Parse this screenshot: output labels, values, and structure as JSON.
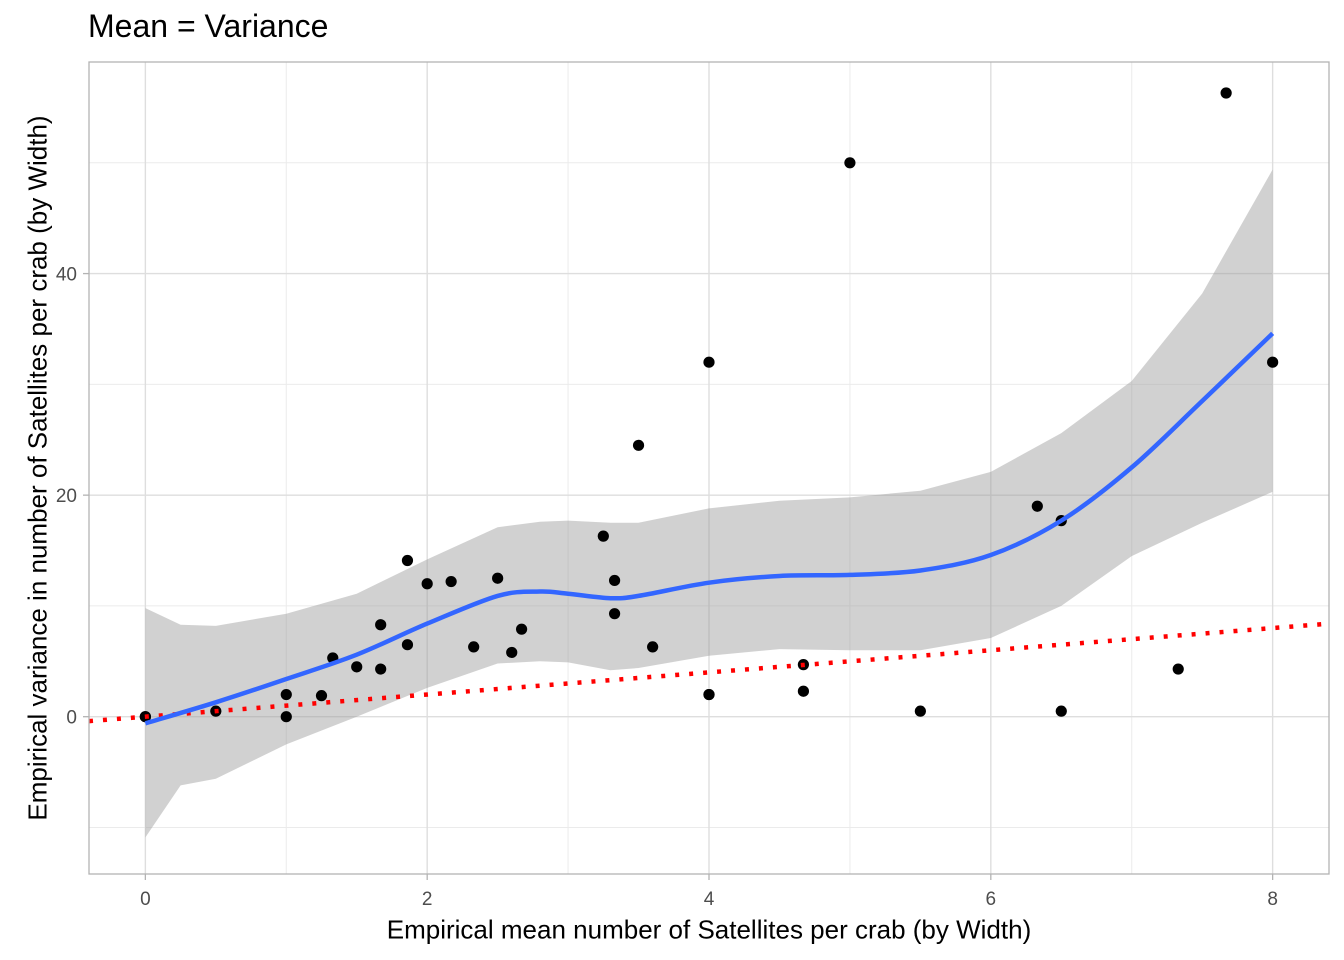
{
  "chart_data": {
    "type": "scatter",
    "title": "Mean = Variance",
    "xlabel": "Empirical mean number of Satellites per crab (by Width)",
    "ylabel": "Empirical variance in number of Satellites per crab (by Width)",
    "xlim": [
      -0.4,
      8.4
    ],
    "ylim": [
      -14.2,
      59.1
    ],
    "x_ticks": [
      0,
      2,
      4,
      6,
      8
    ],
    "y_ticks": [
      0,
      20,
      40
    ],
    "grid": true,
    "points": [
      {
        "x": 0,
        "y": 0
      },
      {
        "x": 0,
        "y": 0
      },
      {
        "x": 0.5,
        "y": 0.5
      },
      {
        "x": 1.0,
        "y": 2.0
      },
      {
        "x": 1.0,
        "y": 0
      },
      {
        "x": 1.25,
        "y": 1.9
      },
      {
        "x": 1.33,
        "y": 5.3
      },
      {
        "x": 1.5,
        "y": 4.5
      },
      {
        "x": 1.67,
        "y": 8.3
      },
      {
        "x": 1.67,
        "y": 4.3
      },
      {
        "x": 1.86,
        "y": 14.1
      },
      {
        "x": 1.86,
        "y": 6.5
      },
      {
        "x": 2.0,
        "y": 12.0
      },
      {
        "x": 2.17,
        "y": 12.2
      },
      {
        "x": 2.33,
        "y": 6.3
      },
      {
        "x": 2.5,
        "y": 12.5
      },
      {
        "x": 2.6,
        "y": 5.8
      },
      {
        "x": 2.67,
        "y": 7.9
      },
      {
        "x": 3.25,
        "y": 16.3
      },
      {
        "x": 3.33,
        "y": 12.3
      },
      {
        "x": 3.33,
        "y": 9.3
      },
      {
        "x": 3.5,
        "y": 24.5
      },
      {
        "x": 3.6,
        "y": 6.3
      },
      {
        "x": 4.0,
        "y": 32.0
      },
      {
        "x": 4.0,
        "y": 2.0
      },
      {
        "x": 4.0,
        "y": 2.0
      },
      {
        "x": 4.67,
        "y": 4.7
      },
      {
        "x": 4.67,
        "y": 2.3
      },
      {
        "x": 5.0,
        "y": 50.0
      },
      {
        "x": 5.5,
        "y": 0.5
      },
      {
        "x": 6.33,
        "y": 19.0
      },
      {
        "x": 6.5,
        "y": 17.7
      },
      {
        "x": 6.5,
        "y": 0.5
      },
      {
        "x": 7.33,
        "y": 4.3
      },
      {
        "x": 7.67,
        "y": 56.3
      },
      {
        "x": 8.0,
        "y": 32.0
      }
    ],
    "smooth_line": {
      "color": "#3366FF",
      "x": [
        0,
        0.5,
        1.0,
        1.5,
        2.0,
        2.5,
        2.8,
        3.0,
        3.3,
        3.5,
        4.0,
        4.5,
        5.0,
        5.5,
        6.0,
        6.5,
        7.0,
        7.5,
        8.0
      ],
      "y": [
        -0.6,
        1.3,
        3.4,
        5.6,
        8.4,
        10.9,
        11.3,
        11.1,
        10.7,
        10.9,
        12.1,
        12.7,
        12.8,
        13.2,
        14.6,
        17.7,
        22.5,
        28.5,
        34.6
      ]
    },
    "confidence_band": {
      "color": "#999999",
      "x": [
        0,
        0.25,
        0.5,
        1.0,
        1.5,
        2.0,
        2.5,
        2.8,
        3.0,
        3.3,
        3.5,
        4.0,
        4.5,
        5.0,
        5.5,
        6.0,
        6.5,
        7.0,
        7.5,
        8.0
      ],
      "upper": [
        9.8,
        8.3,
        8.2,
        9.3,
        11.1,
        14.2,
        17.1,
        17.6,
        17.7,
        17.5,
        17.5,
        18.8,
        19.5,
        19.8,
        20.4,
        22.1,
        25.6,
        30.3,
        38.2,
        49.4
      ],
      "lower": [
        -10.9,
        -6.2,
        -5.6,
        -2.5,
        0.0,
        2.6,
        4.8,
        5.0,
        4.9,
        4.2,
        4.4,
        5.5,
        6.1,
        6.0,
        6.0,
        7.1,
        10.0,
        14.5,
        17.5,
        20.3
      ]
    },
    "reference_line": {
      "description_shown": "dotted y = x line",
      "color": "#FF0000",
      "slope": 1,
      "intercept": 0
    }
  }
}
